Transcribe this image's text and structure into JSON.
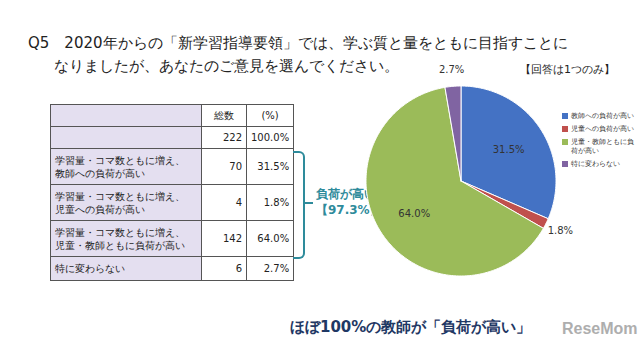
{
  "title": [
    "Q5　2020年からの「新学習指導要領」では、学ぶ質と量をともに目指すことに",
    "なりましたが、あなたのご意見を選んでください。"
  ],
  "note": "【回答は1つのみ】",
  "table": {
    "header": [
      null,
      "総数",
      "(%)"
    ],
    "rows": [
      {
        "label": null,
        "count": "222",
        "percent": "100.0%"
      },
      {
        "label": [
          "学習量・コマ数ともに増え、",
          "教師への負荷が高い"
        ],
        "count": "70",
        "percent": "31.5%"
      },
      {
        "label": [
          "学習量・コマ数ともに増え、",
          "児童への負荷が高い"
        ],
        "count": "4",
        "percent": "1.8%"
      },
      {
        "label": [
          "学習量・コマ数ともに増え、",
          "児童・教師ともに負荷が高い"
        ],
        "count": "142",
        "percent": "64.0%"
      },
      {
        "label": [
          "特に変わらない"
        ],
        "count": "6",
        "percent": "2.7%"
      }
    ]
  },
  "bracket": [
    "負荷が高い",
    "【97.3%】"
  ],
  "caption": "ほぼ100%の教師が「負荷が高い」",
  "watermark": "ReseMom",
  "chart_data": {
    "type": "pie",
    "categories": [
      "教師への負荷が高い",
      "児童への負荷が高い",
      "児童・教師ともに負荷が高い",
      "特に変わらない"
    ],
    "values": [
      31.5,
      1.8,
      64.0,
      2.7
    ],
    "value_labels": [
      "31.5%",
      "1.8%",
      "64.0%",
      "2.7%"
    ],
    "colors": [
      "#4472c4",
      "#c0504d",
      "#9bbb59",
      "#8064a2"
    ],
    "data_labels": true,
    "legend": "right"
  }
}
